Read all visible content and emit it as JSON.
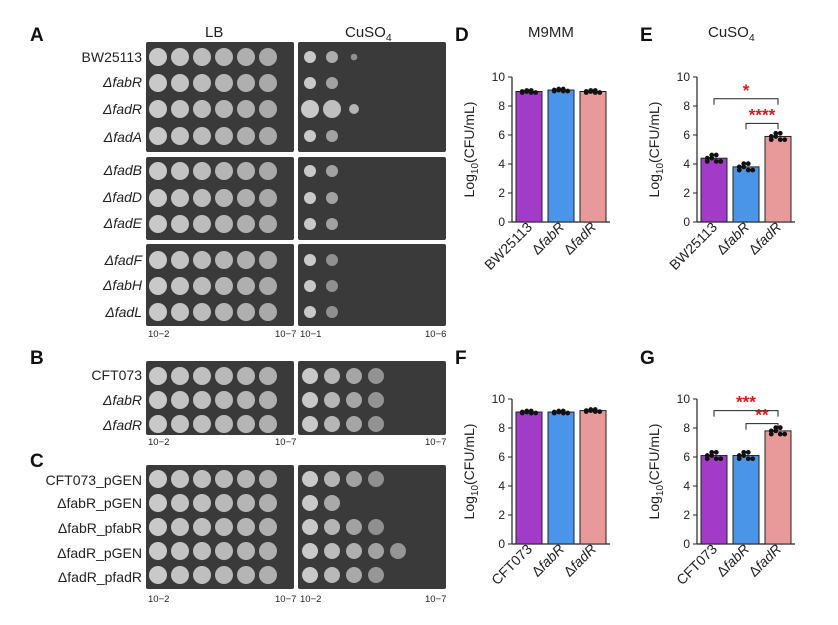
{
  "panelA": {
    "letter": "A",
    "lb_header": "LB",
    "cu_header": "CuSO4",
    "strains": [
      "BW25113",
      "ΔfabR",
      "ΔfadR",
      "ΔfadA",
      "ΔfadB",
      "ΔfadD",
      "ΔfadE",
      "ΔfadF",
      "ΔfabH",
      "ΔfadL"
    ],
    "lb_dilution_start": "10−2",
    "lb_dilution_end": "10−7",
    "cu_dilution_start": "10−1",
    "cu_dilution_end": "10−6"
  },
  "panelB": {
    "letter": "B",
    "strains": [
      "CFT073",
      "ΔfabR",
      "ΔfadR"
    ],
    "lb_dilution_start": "10−2",
    "lb_dilution_end": "10−7",
    "cu_dilution_end": "10−7"
  },
  "panelC": {
    "letter": "C",
    "strains": [
      "CFT073_pGEN",
      "ΔfabR_pGEN",
      "ΔfabR_pfabR",
      "ΔfadR_pGEN",
      "ΔfadR_pfadR"
    ],
    "lb_dilution_start": "10−2",
    "lb_dilution_end": "10−7",
    "cu_dilution_start": "10−2",
    "cu_dilution_end": "10−7"
  },
  "panelD": {
    "letter": "D",
    "title": "M9MM"
  },
  "panelE": {
    "letter": "E",
    "title": "CuSO4"
  },
  "panelF": {
    "letter": "F"
  },
  "panelG": {
    "letter": "G"
  },
  "chart_data": [
    {
      "id": "D",
      "type": "bar",
      "title": "M9MM",
      "ylabel": "Log10(CFU/mL)",
      "categories": [
        "BW25113",
        "ΔfabR",
        "ΔfadR"
      ],
      "values": [
        9.0,
        9.1,
        9.0
      ],
      "colors": [
        "#a23cc8",
        "#4a95e8",
        "#e89a9a"
      ],
      "ylim": [
        0,
        10
      ],
      "yticks": [
        0,
        2,
        4,
        6,
        8,
        10
      ],
      "significance": []
    },
    {
      "id": "E",
      "type": "bar",
      "title": "CuSO4",
      "ylabel": "Log10(CFU/mL)",
      "categories": [
        "BW25113",
        "ΔfabR",
        "ΔfadR"
      ],
      "values": [
        4.4,
        3.8,
        5.9
      ],
      "colors": [
        "#a23cc8",
        "#4a95e8",
        "#e89a9a"
      ],
      "ylim": [
        0,
        10
      ],
      "yticks": [
        0,
        2,
        4,
        6,
        8,
        10
      ],
      "significance": [
        {
          "from": 0,
          "to": 2,
          "label": "*",
          "at": 8.5
        },
        {
          "from": 1,
          "to": 2,
          "label": "****",
          "at": 6.8
        }
      ]
    },
    {
      "id": "F",
      "type": "bar",
      "title": "",
      "ylabel": "Log10(CFU/mL)",
      "categories": [
        "CFT073",
        "ΔfabR",
        "ΔfadR"
      ],
      "values": [
        9.1,
        9.1,
        9.2
      ],
      "colors": [
        "#a23cc8",
        "#4a95e8",
        "#e89a9a"
      ],
      "ylim": [
        0,
        10
      ],
      "yticks": [
        0,
        2,
        4,
        6,
        8,
        10
      ],
      "significance": []
    },
    {
      "id": "G",
      "type": "bar",
      "title": "",
      "ylabel": "Log10(CFU/mL)",
      "categories": [
        "CFT073",
        "ΔfabR",
        "ΔfadR"
      ],
      "values": [
        6.1,
        6.1,
        7.8
      ],
      "colors": [
        "#a23cc8",
        "#4a95e8",
        "#e89a9a"
      ],
      "ylim": [
        0,
        10
      ],
      "yticks": [
        0,
        2,
        4,
        6,
        8,
        10
      ],
      "significance": [
        {
          "from": 0,
          "to": 2,
          "label": "***",
          "at": 9.2
        },
        {
          "from": 1,
          "to": 2,
          "label": "**",
          "at": 8.3
        }
      ]
    }
  ]
}
